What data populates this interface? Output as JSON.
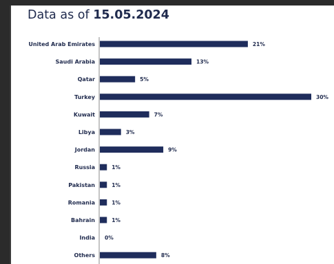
{
  "header": {
    "prefix": "Data as of",
    "date": "15.05.2024"
  },
  "colors": {
    "bar": "#1f2d5c",
    "text": "#1f2a4d",
    "axis": "#8a8a8a"
  },
  "chart_data": {
    "type": "bar",
    "orientation": "horizontal",
    "title": "",
    "xlabel": "",
    "ylabel": "",
    "categories": [
      "United Arab Emirates",
      "Saudi Arabia",
      "Qatar",
      "Turkey",
      "Kuwait",
      "Libya",
      "Jordan",
      "Russia",
      "Pakistan",
      "Romania",
      "Bahrain",
      "India",
      "Others"
    ],
    "values": [
      21,
      13,
      5,
      30,
      7,
      3,
      9,
      1,
      1,
      1,
      1,
      0,
      8
    ],
    "value_labels": [
      "21%",
      "13%",
      "5%",
      "30%",
      "7%",
      "3%",
      "9%",
      "1%",
      "1%",
      "1%",
      "1%",
      "0%",
      "8%"
    ],
    "xlim": [
      0,
      30
    ],
    "grid": false,
    "legend": "none"
  }
}
